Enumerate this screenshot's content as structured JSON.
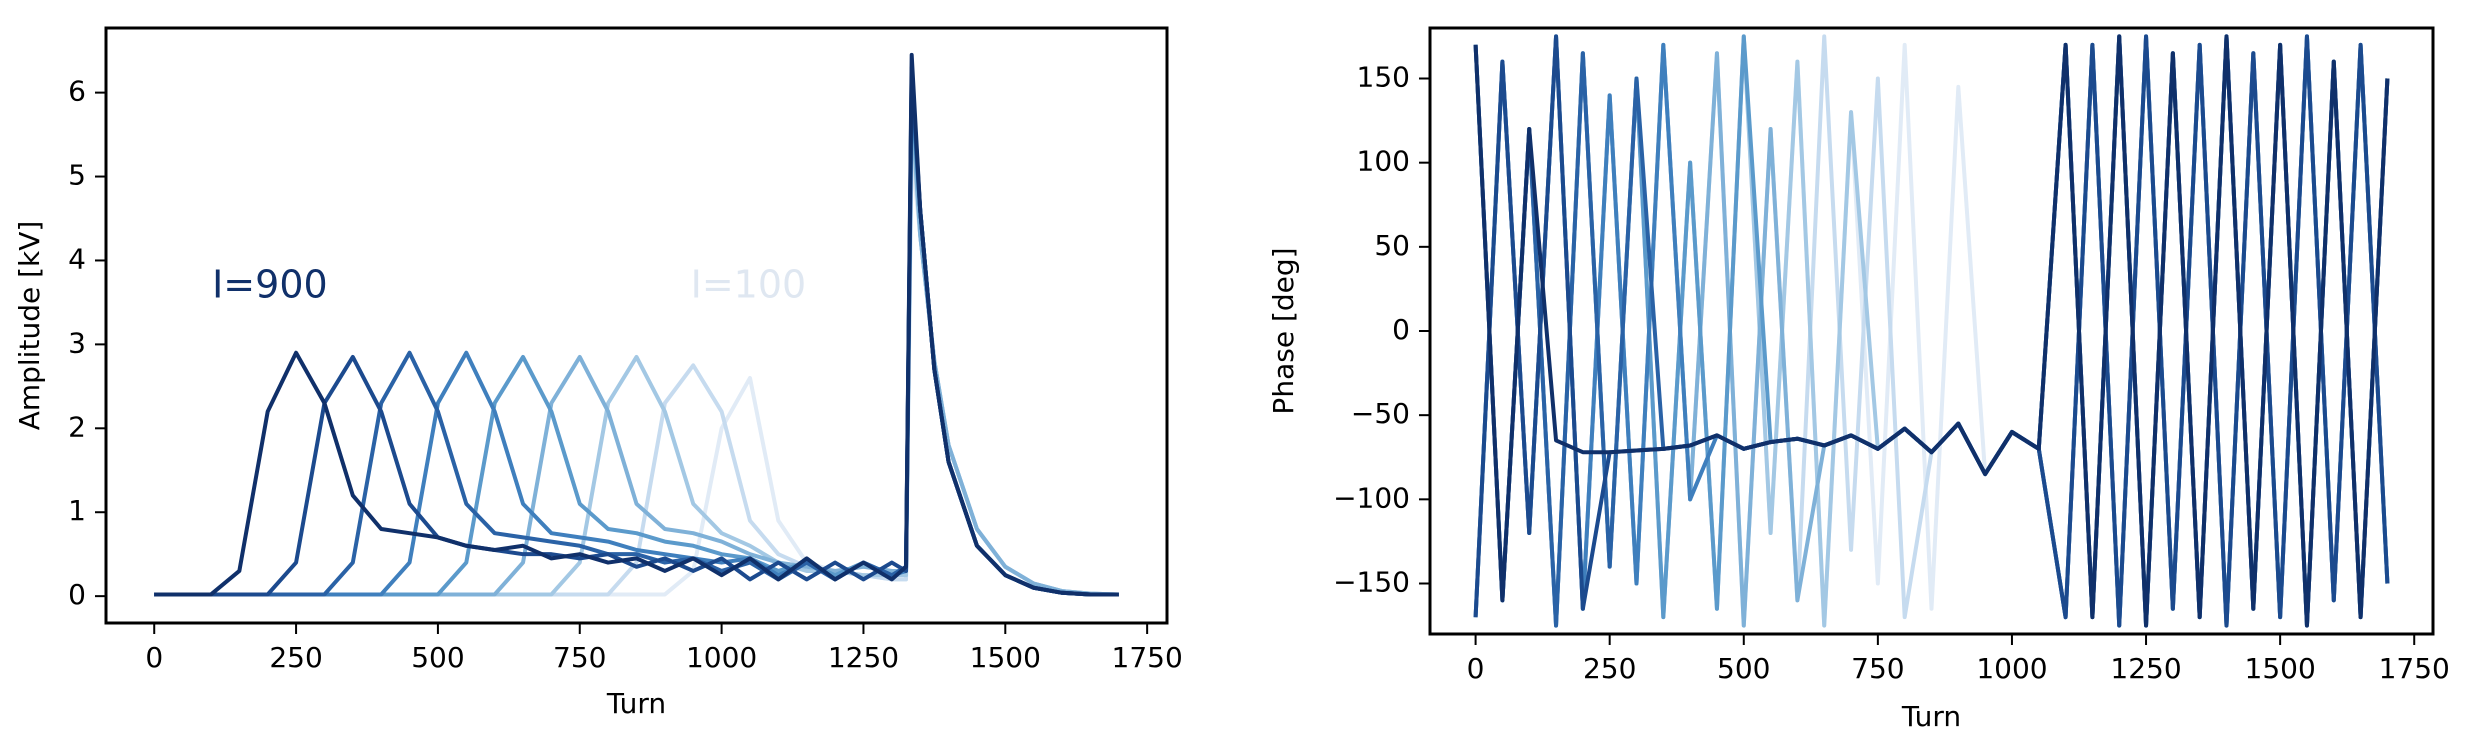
{
  "chart_data": [
    {
      "type": "line",
      "xlabel": "Turn",
      "ylabel": "Amplitude [kV]",
      "annotations": [
        "I=900",
        "I=100"
      ],
      "xlim": [
        -85,
        1785
      ],
      "xticks": [
        0,
        250,
        500,
        750,
        1000,
        1250,
        1500,
        1750
      ],
      "ylim": [
        -0.32,
        6.77
      ],
      "yticks": [
        0,
        1,
        2,
        3,
        4,
        5,
        6
      ],
      "x": [
        0,
        50,
        100,
        150,
        200,
        250,
        300,
        350,
        400,
        450,
        500,
        550,
        600,
        650,
        700,
        750,
        800,
        850,
        900,
        950,
        1000,
        1050,
        1100,
        1150,
        1200,
        1250,
        1300,
        1325,
        1335,
        1350,
        1375,
        1400,
        1450,
        1500,
        1550,
        1600,
        1650,
        1700
      ],
      "series": [
        {
          "color": "#e1ebf6",
          "values": [
            0.02,
            0.02,
            0.02,
            0.02,
            0.02,
            0.02,
            0.02,
            0.02,
            0.02,
            0.02,
            0.02,
            0.02,
            0.02,
            0.02,
            0.02,
            0.02,
            0.02,
            0.02,
            0.02,
            0.3,
            2.0,
            2.6,
            0.9,
            0.4,
            0.3,
            0.25,
            0.2,
            0.2,
            5.3,
            4.3,
            2.8,
            1.8,
            0.8,
            0.35,
            0.15,
            0.06,
            0.03,
            0.02
          ]
        },
        {
          "color": "#c6dbef",
          "values": [
            0.02,
            0.02,
            0.02,
            0.02,
            0.02,
            0.02,
            0.02,
            0.02,
            0.02,
            0.02,
            0.02,
            0.02,
            0.02,
            0.02,
            0.02,
            0.02,
            0.02,
            0.4,
            2.3,
            2.75,
            2.2,
            0.9,
            0.5,
            0.35,
            0.3,
            0.25,
            0.2,
            0.2,
            5.6,
            4.3,
            2.8,
            1.8,
            0.8,
            0.35,
            0.15,
            0.06,
            0.03,
            0.02
          ]
        },
        {
          "color": "#a3c8e4",
          "values": [
            0.02,
            0.02,
            0.02,
            0.02,
            0.02,
            0.02,
            0.02,
            0.02,
            0.02,
            0.02,
            0.02,
            0.02,
            0.02,
            0.02,
            0.02,
            0.4,
            2.3,
            2.85,
            2.2,
            1.1,
            0.75,
            0.6,
            0.4,
            0.3,
            0.3,
            0.25,
            0.25,
            0.25,
            5.8,
            4.3,
            2.8,
            1.8,
            0.8,
            0.35,
            0.15,
            0.06,
            0.03,
            0.02
          ]
        },
        {
          "color": "#7fb1d8",
          "values": [
            0.02,
            0.02,
            0.02,
            0.02,
            0.02,
            0.02,
            0.02,
            0.02,
            0.02,
            0.02,
            0.02,
            0.02,
            0.02,
            0.4,
            2.3,
            2.85,
            2.2,
            1.1,
            0.8,
            0.75,
            0.65,
            0.5,
            0.4,
            0.35,
            0.3,
            0.35,
            0.3,
            0.3,
            5.9,
            4.3,
            2.8,
            1.8,
            0.8,
            0.35,
            0.15,
            0.06,
            0.03,
            0.02
          ]
        },
        {
          "color": "#5b9acb",
          "values": [
            0.02,
            0.02,
            0.02,
            0.02,
            0.02,
            0.02,
            0.02,
            0.02,
            0.02,
            0.02,
            0.02,
            0.4,
            2.3,
            2.85,
            2.2,
            1.1,
            0.8,
            0.75,
            0.65,
            0.6,
            0.5,
            0.45,
            0.3,
            0.4,
            0.25,
            0.4,
            0.25,
            0.3,
            6.0,
            4.6,
            2.7,
            1.6,
            0.6,
            0.25,
            0.1,
            0.04,
            0.02,
            0.02
          ]
        },
        {
          "color": "#3f7fbd",
          "values": [
            0.02,
            0.02,
            0.02,
            0.02,
            0.02,
            0.02,
            0.02,
            0.02,
            0.02,
            0.4,
            2.3,
            2.9,
            2.2,
            1.1,
            0.75,
            0.7,
            0.65,
            0.55,
            0.5,
            0.45,
            0.4,
            0.45,
            0.25,
            0.4,
            0.2,
            0.4,
            0.25,
            0.3,
            6.1,
            4.6,
            2.7,
            1.6,
            0.6,
            0.25,
            0.1,
            0.04,
            0.02,
            0.02
          ]
        },
        {
          "color": "#2a62a6",
          "values": [
            0.02,
            0.02,
            0.02,
            0.02,
            0.02,
            0.02,
            0.02,
            0.4,
            2.3,
            2.9,
            2.2,
            1.1,
            0.75,
            0.7,
            0.65,
            0.6,
            0.5,
            0.5,
            0.4,
            0.45,
            0.3,
            0.4,
            0.2,
            0.4,
            0.2,
            0.4,
            0.25,
            0.35,
            6.2,
            4.6,
            2.7,
            1.6,
            0.6,
            0.25,
            0.1,
            0.04,
            0.02,
            0.02
          ]
        },
        {
          "color": "#1c4a8e",
          "values": [
            0.02,
            0.02,
            0.02,
            0.02,
            0.02,
            0.4,
            2.3,
            2.85,
            2.2,
            1.1,
            0.7,
            0.6,
            0.55,
            0.5,
            0.5,
            0.45,
            0.5,
            0.35,
            0.45,
            0.3,
            0.45,
            0.2,
            0.4,
            0.2,
            0.4,
            0.2,
            0.4,
            0.3,
            6.3,
            4.6,
            2.7,
            1.6,
            0.6,
            0.25,
            0.1,
            0.04,
            0.02,
            0.02
          ]
        },
        {
          "color": "#10306a",
          "values": [
            0.02,
            0.02,
            0.02,
            0.3,
            2.2,
            2.9,
            2.3,
            1.2,
            0.8,
            0.75,
            0.7,
            0.6,
            0.55,
            0.6,
            0.45,
            0.5,
            0.4,
            0.45,
            0.3,
            0.45,
            0.25,
            0.45,
            0.2,
            0.45,
            0.2,
            0.4,
            0.2,
            0.35,
            6.45,
            4.6,
            2.7,
            1.6,
            0.6,
            0.25,
            0.1,
            0.04,
            0.02,
            0.02
          ]
        }
      ]
    },
    {
      "type": "line",
      "xlabel": "Turn",
      "ylabel": "Phase [deg]",
      "xlim": [
        -85,
        1785
      ],
      "xticks": [
        0,
        250,
        500,
        750,
        1000,
        1250,
        1500,
        1750
      ],
      "ylim": [
        -180,
        180
      ],
      "yticks": [
        {
          "value": -150,
          "label": "−150"
        },
        {
          "value": -100,
          "label": "−100"
        },
        {
          "value": -50,
          "label": "−50"
        },
        0,
        50,
        100,
        150
      ],
      "x": [
        0,
        50,
        100,
        150,
        200,
        250,
        300,
        350,
        400,
        450,
        500,
        550,
        600,
        650,
        700,
        750,
        800,
        850,
        900,
        950,
        1000,
        1050,
        1100,
        1150,
        1200,
        1250,
        1300,
        1350,
        1400,
        1450,
        1500,
        1550,
        1600,
        1650,
        1700
      ],
      "series": [
        {
          "color": "#e1ebf6",
          "values": [
            170,
            -160,
            120,
            -175,
            165,
            -140,
            150,
            -170,
            100,
            -165,
            175,
            -120,
            160,
            -175,
            130,
            -150,
            170,
            -165,
            145,
            -85,
            -60,
            -70,
            170,
            -170,
            175,
            -175,
            165,
            -170,
            175,
            -165,
            170,
            -175,
            160,
            -170,
            150
          ]
        },
        {
          "color": "#c6dbef",
          "values": [
            -170,
            160,
            -120,
            175,
            -165,
            140,
            -150,
            170,
            -100,
            165,
            -175,
            120,
            -160,
            175,
            -130,
            150,
            -170,
            -72,
            -55,
            -85,
            -60,
            -70,
            -170,
            170,
            -175,
            175,
            -165,
            170,
            -175,
            165,
            -170,
            175,
            -160,
            170,
            -150
          ]
        },
        {
          "color": "#a3c8e4",
          "values": [
            170,
            -160,
            120,
            -175,
            165,
            -140,
            150,
            -170,
            100,
            -165,
            175,
            -120,
            160,
            -175,
            130,
            -70,
            -58,
            -72,
            -55,
            -85,
            -60,
            -70,
            170,
            -170,
            175,
            -175,
            165,
            -170,
            175,
            -165,
            170,
            -175,
            160,
            -170,
            150
          ]
        },
        {
          "color": "#7fb1d8",
          "values": [
            -170,
            160,
            -120,
            175,
            -165,
            140,
            -150,
            170,
            -100,
            165,
            -175,
            120,
            -160,
            -68,
            -62,
            -70,
            -58,
            -72,
            -55,
            -85,
            -60,
            -70,
            -170,
            170,
            -175,
            175,
            -165,
            170,
            -175,
            165,
            -170,
            175,
            -160,
            170,
            -150
          ]
        },
        {
          "color": "#5b9acb",
          "values": [
            170,
            -160,
            120,
            -175,
            165,
            -140,
            150,
            -170,
            100,
            -165,
            175,
            -66,
            -64,
            -68,
            -62,
            -70,
            -58,
            -72,
            -55,
            -85,
            -60,
            -70,
            170,
            -170,
            175,
            -175,
            165,
            -170,
            175,
            -165,
            170,
            -175,
            160,
            -170,
            150
          ]
        },
        {
          "color": "#3f7fbd",
          "values": [
            -170,
            160,
            -120,
            175,
            -165,
            140,
            -150,
            170,
            -100,
            -62,
            -70,
            -66,
            -64,
            -68,
            -62,
            -70,
            -58,
            -72,
            -55,
            -85,
            -60,
            -70,
            -170,
            170,
            -175,
            175,
            -165,
            170,
            -175,
            165,
            -170,
            175,
            -160,
            170,
            -150
          ]
        },
        {
          "color": "#2a62a6",
          "values": [
            170,
            -160,
            120,
            -175,
            165,
            -140,
            150,
            -70,
            -68,
            -62,
            -70,
            -66,
            -64,
            -68,
            -62,
            -70,
            -58,
            -72,
            -55,
            -85,
            -60,
            -70,
            170,
            -170,
            175,
            -175,
            165,
            -170,
            175,
            -165,
            170,
            -175,
            160,
            -170,
            150
          ]
        },
        {
          "color": "#1c4a8e",
          "values": [
            -170,
            160,
            -120,
            175,
            -165,
            -72,
            -71,
            -70,
            -68,
            -62,
            -70,
            -66,
            -64,
            -68,
            -62,
            -70,
            -58,
            -72,
            -55,
            -85,
            -60,
            -70,
            -170,
            170,
            -175,
            175,
            -165,
            170,
            -175,
            165,
            -170,
            175,
            -160,
            170,
            -150
          ]
        },
        {
          "color": "#10306a",
          "values": [
            170,
            -160,
            120,
            -65,
            -72,
            -72,
            -71,
            -70,
            -68,
            -62,
            -70,
            -66,
            -64,
            -68,
            -62,
            -70,
            -58,
            -72,
            -55,
            -85,
            -60,
            -70,
            170,
            -170,
            175,
            -175,
            165,
            -170,
            175,
            -165,
            170,
            -175,
            160,
            -170,
            150
          ]
        }
      ]
    }
  ]
}
